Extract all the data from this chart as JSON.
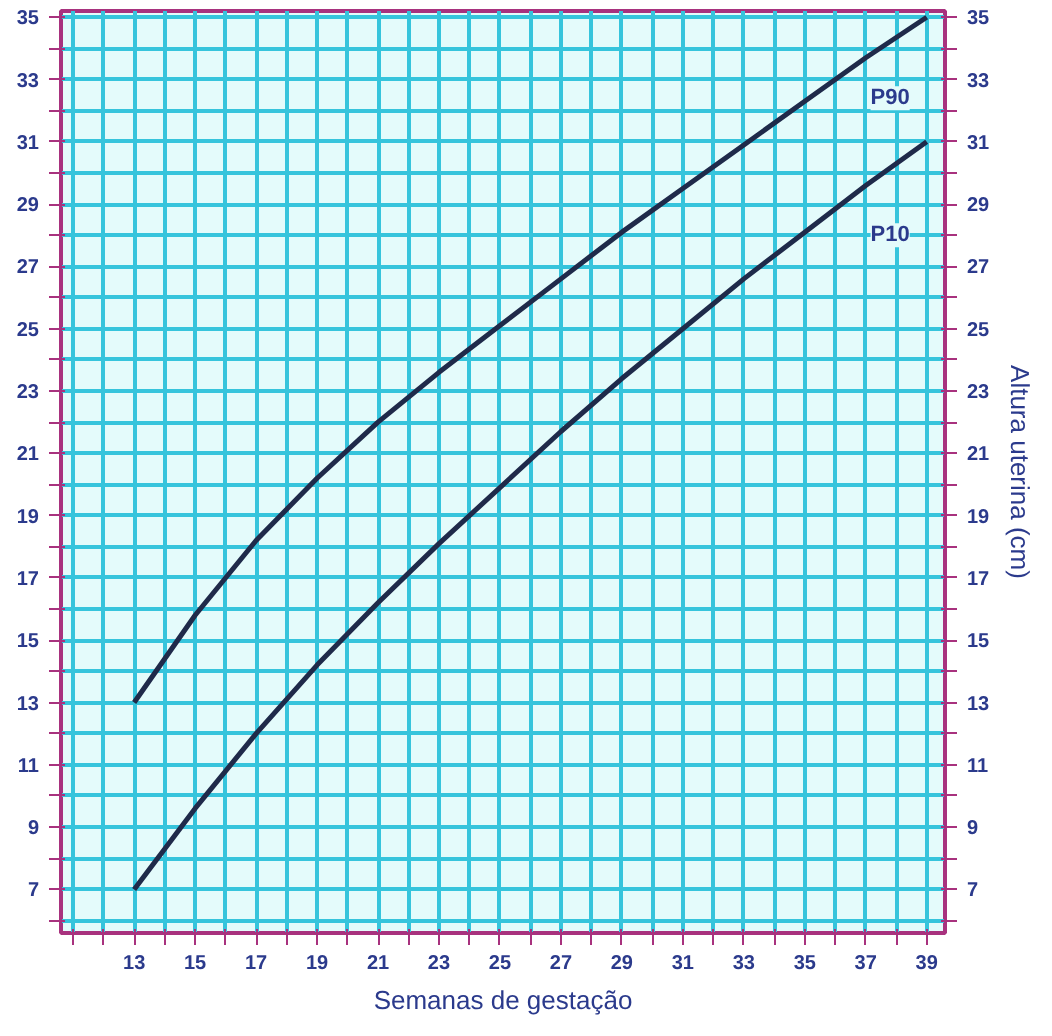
{
  "chart_data": {
    "type": "line",
    "xlabel": "Semanas de gestação",
    "y2label": "Altura uterina (cm)",
    "x": [
      13,
      15,
      17,
      19,
      21,
      23,
      25,
      27,
      29,
      31,
      33,
      35,
      37,
      39
    ],
    "series": [
      {
        "color": "#1f2a4a",
        "values": [
          13,
          15.8,
          18.2,
          20.2,
          22,
          23.6,
          25.1,
          26.6,
          28.1,
          29.5,
          30.9,
          32.3,
          33.7,
          35
        ]
      },
      {
        "color": "#1f2a4a",
        "values": [
          7,
          9.6,
          12,
          14.2,
          16.2,
          18.1,
          19.9,
          21.7,
          23.4,
          25,
          26.6,
          28.1,
          29.6,
          31
        ]
      }
    ],
    "annotations": [
      {
        "text": "P90",
        "x": 37.8,
        "y": 32.4
      },
      {
        "text": "P10",
        "x": 37.8,
        "y": 28.0
      }
    ],
    "xlim": [
      10.6,
      39.6
    ],
    "ylim": [
      5.6,
      35.2
    ],
    "y2lim": [
      5.6,
      35.2
    ],
    "xticks": [
      {
        "value": 11,
        "label": null
      },
      {
        "value": 12,
        "label": null
      },
      13,
      {
        "value": 14,
        "label": null
      },
      15,
      {
        "value": 16,
        "label": null
      },
      17,
      {
        "value": 18,
        "label": null
      },
      19,
      {
        "value": 20,
        "label": null
      },
      21,
      {
        "value": 22,
        "label": null
      },
      23,
      {
        "value": 24,
        "label": null
      },
      25,
      {
        "value": 26,
        "label": null
      },
      27,
      {
        "value": 28,
        "label": null
      },
      29,
      {
        "value": 30,
        "label": null
      },
      31,
      {
        "value": 32,
        "label": null
      },
      33,
      {
        "value": 34,
        "label": null
      },
      35,
      {
        "value": 36,
        "label": null
      },
      37,
      {
        "value": 38,
        "label": null
      },
      39
    ],
    "yticks": [
      {
        "value": 6,
        "label": null
      },
      7,
      {
        "value": 8,
        "label": null
      },
      9,
      {
        "value": 10,
        "label": null
      },
      11,
      {
        "value": 12,
        "label": null
      },
      13,
      {
        "value": 14,
        "label": null
      },
      15,
      {
        "value": 16,
        "label": null
      },
      17,
      {
        "value": 18,
        "label": null
      },
      19,
      {
        "value": 20,
        "label": null
      },
      21,
      {
        "value": 22,
        "label": null
      },
      23,
      {
        "value": 24,
        "label": null
      },
      25,
      {
        "value": 26,
        "label": null
      },
      27,
      {
        "value": 28,
        "label": null
      },
      29,
      {
        "value": 30,
        "label": null
      },
      31,
      {
        "value": 32,
        "label": null
      },
      33,
      {
        "value": 34,
        "label": null
      },
      35
    ],
    "y2ticks": [
      {
        "value": 6,
        "label": null
      },
      7,
      {
        "value": 8,
        "label": null
      },
      9,
      {
        "value": 10,
        "label": null
      },
      11,
      {
        "value": 12,
        "label": null
      },
      13,
      {
        "value": 14,
        "label": null
      },
      15,
      {
        "value": 16,
        "label": null
      },
      17,
      {
        "value": 18,
        "label": null
      },
      19,
      {
        "value": 20,
        "label": null
      },
      21,
      {
        "value": 22,
        "label": null
      },
      23,
      {
        "value": 24,
        "label": null
      },
      25,
      {
        "value": 26,
        "label": null
      },
      27,
      {
        "value": 28,
        "label": null
      },
      29,
      {
        "value": 30,
        "label": null
      },
      31,
      {
        "value": 32,
        "label": null
      },
      33,
      {
        "value": 34,
        "label": null
      },
      35
    ],
    "grid": true,
    "marker": "none",
    "line_style": "solid"
  }
}
